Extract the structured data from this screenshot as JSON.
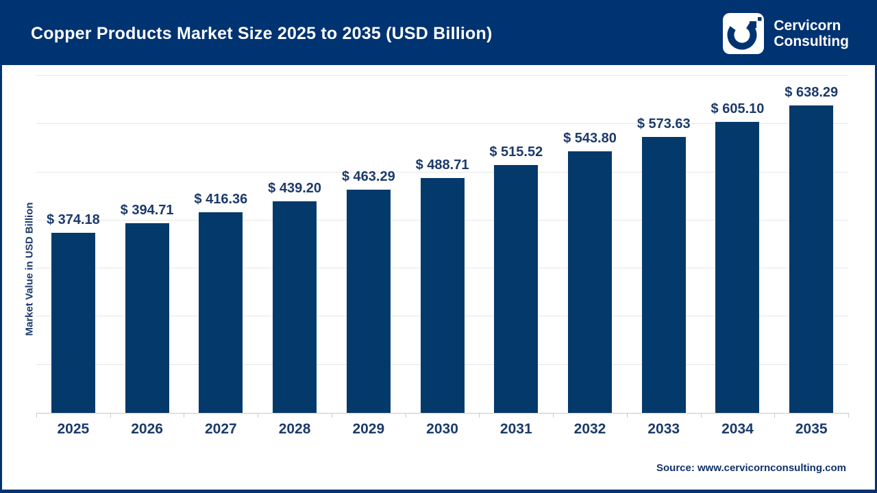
{
  "header": {
    "title": "Copper Products Market Size 2025 to 2035 (USD Billion)",
    "logo": {
      "line1": "Cervicorn",
      "line2": "Consulting"
    }
  },
  "chart_data": {
    "type": "bar",
    "title": "Copper Products Market Size 2025 to 2035 (USD Billion)",
    "categories": [
      "2025",
      "2026",
      "2027",
      "2028",
      "2029",
      "2030",
      "2031",
      "2032",
      "2033",
      "2034",
      "2035"
    ],
    "values": [
      374.18,
      394.71,
      416.36,
      439.2,
      463.29,
      488.71,
      515.52,
      543.8,
      573.63,
      605.1,
      638.29
    ],
    "value_label_prefix": "$ ",
    "xlabel": "",
    "ylabel": "Market Value in USD Billion",
    "ylim": [
      0,
      700
    ],
    "gridline_step": 100,
    "grid": "horizontal, no y tick labels",
    "legend": "none",
    "bar_color": "#04396b",
    "label_color": "#1b3a6b"
  },
  "footer": {
    "source": "Source: www.cervicornconsulting.com"
  },
  "colors": {
    "navy": "#003371",
    "bar": "#04396b",
    "text": "#1b3a6b",
    "gridline": "#e6e6e6",
    "axis": "#c9c9c9"
  }
}
